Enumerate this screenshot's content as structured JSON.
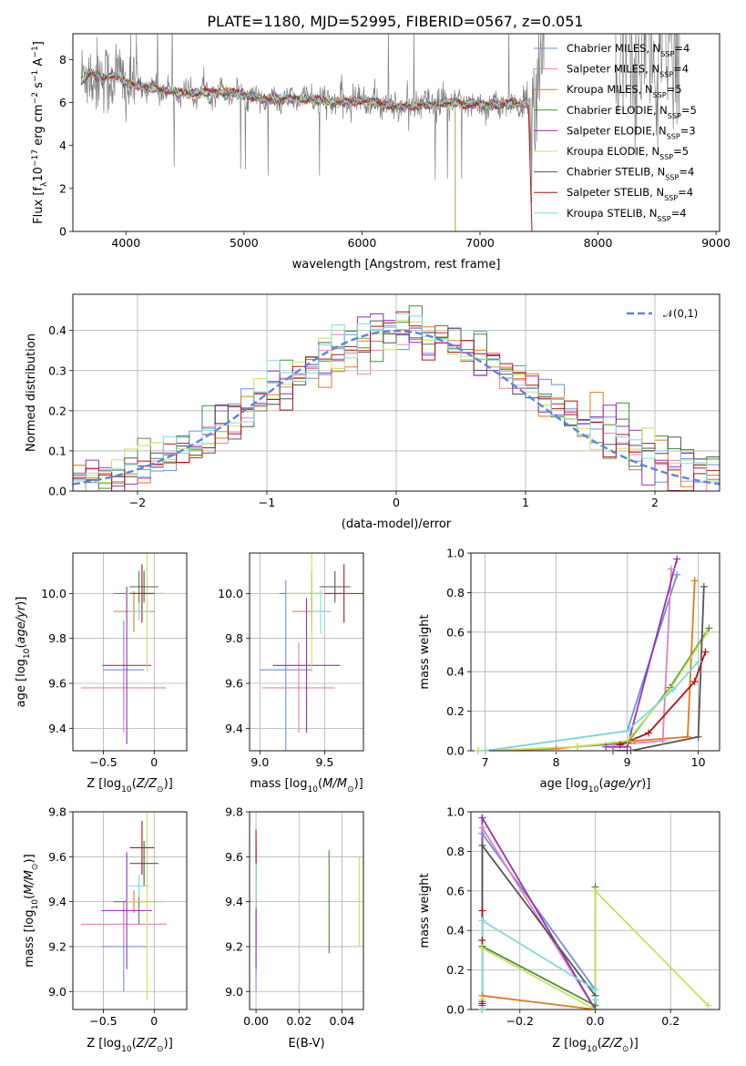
{
  "title": "PLATE=1180, MJD=52995, FIBERID=0567, z=0.051",
  "colors": {
    "Chabrier MILES": "#6f8fdc",
    "Salpeter MILES": "#e27fbf",
    "Kroupa MILES": "#e07a1c",
    "Chabrier ELODIE": "#4c8a3c",
    "Salpeter ELODIE": "#9a2fb3",
    "Kroupa ELODIE": "#c9e05a",
    "Chabrier STELIB": "#555555",
    "Salpeter STELIB": "#b51414",
    "Kroupa STELIB": "#7fdadf",
    "data": "#808080",
    "normal": "#5b86d8"
  },
  "chart_data": [
    {
      "type": "line",
      "panel": "spectrum",
      "xlabel": "wavelength [Angstrom, rest frame]",
      "ylabel": "Flux [f_λ 10^-17 erg cm^-2 s^-1 A^-1]",
      "xlim": [
        3550,
        9030
      ],
      "ylim": [
        0,
        9.2
      ],
      "xticks": [
        4000,
        5000,
        6000,
        7000,
        8000,
        9000
      ],
      "yticks": [
        0,
        2,
        4,
        6,
        8
      ],
      "legend_position": "top-right",
      "legend": [
        {
          "name": "Chabrier MILES",
          "sub": "SSP",
          "n": 4
        },
        {
          "name": "Salpeter MILES",
          "sub": "SSP",
          "n": 4
        },
        {
          "name": "Kroupa MILES",
          "sub": "SSP",
          "n": 5
        },
        {
          "name": "Chabrier ELODIE",
          "sub": "SSP",
          "n": 5
        },
        {
          "name": "Salpeter ELODIE",
          "sub": "SSP",
          "n": 3
        },
        {
          "name": "Kroupa ELODIE",
          "sub": "SSP",
          "n": 5
        },
        {
          "name": "Chabrier STELIB",
          "sub": "SSP",
          "n": 4
        },
        {
          "name": "Salpeter STELIB",
          "sub": "SSP",
          "n": 4
        },
        {
          "name": "Kroupa STELIB",
          "sub": "SSP",
          "n": 4
        }
      ],
      "data_trend": [
        [
          3620,
          7.0
        ],
        [
          3700,
          7.4
        ],
        [
          3800,
          7.1
        ],
        [
          3900,
          7.3
        ],
        [
          4000,
          6.9
        ],
        [
          4200,
          6.7
        ],
        [
          4500,
          6.4
        ],
        [
          4800,
          6.5
        ],
        [
          5000,
          6.4
        ],
        [
          5200,
          6.1
        ],
        [
          5500,
          6.2
        ],
        [
          5800,
          6.0
        ],
        [
          6000,
          6.1
        ],
        [
          6300,
          5.8
        ],
        [
          6600,
          5.9
        ],
        [
          6800,
          6.0
        ],
        [
          7000,
          5.9
        ],
        [
          7200,
          5.9
        ],
        [
          7400,
          6.0
        ]
      ]
    },
    {
      "type": "line",
      "panel": "residual histogram",
      "xlabel": "(data-model)/error",
      "ylabel": "Normed distribution",
      "xlim": [
        -2.5,
        2.5
      ],
      "ylim": [
        0,
        0.49
      ],
      "xticks": [
        -2,
        -1,
        0,
        1,
        2
      ],
      "yticks": [
        0.0,
        0.1,
        0.2,
        0.3,
        0.4
      ],
      "legend_position": "top-right",
      "legend": [
        {
          "label": "𝒩(0,1)"
        }
      ],
      "bin_width": 0.1,
      "histogram_envelope": [
        [
          -2.5,
          0.03
        ],
        [
          -2.3,
          0.04
        ],
        [
          -2.1,
          0.045
        ],
        [
          -1.9,
          0.065
        ],
        [
          -1.7,
          0.1
        ],
        [
          -1.5,
          0.13
        ],
        [
          -1.3,
          0.17
        ],
        [
          -1.1,
          0.21
        ],
        [
          -0.9,
          0.26
        ],
        [
          -0.7,
          0.3
        ],
        [
          -0.5,
          0.33
        ],
        [
          -0.3,
          0.36
        ],
        [
          -0.1,
          0.39
        ],
        [
          0.1,
          0.4
        ],
        [
          0.3,
          0.39
        ],
        [
          0.5,
          0.36
        ],
        [
          0.7,
          0.33
        ],
        [
          0.9,
          0.29
        ],
        [
          1.1,
          0.25
        ],
        [
          1.3,
          0.21
        ],
        [
          1.5,
          0.17
        ],
        [
          1.7,
          0.14
        ],
        [
          1.9,
          0.1
        ],
        [
          2.1,
          0.075
        ],
        [
          2.3,
          0.05
        ],
        [
          2.5,
          0.03
        ]
      ]
    },
    {
      "type": "scatter",
      "panel": "Z vs age",
      "xlabel": "Z [log10(Z/Z⊙)]",
      "ylabel": "age  [log10(age/yr)]",
      "xlim": [
        -0.8,
        0.32
      ],
      "ylim": [
        9.3,
        10.18
      ],
      "xticks": [
        -0.5,
        0.0
      ],
      "yticks": [
        9.4,
        9.6,
        9.8,
        10.0
      ],
      "points": [
        {
          "model": "Chabrier MILES",
          "x": -0.3,
          "xerr": 0.2,
          "y": 9.66,
          "yerr": 0.22
        },
        {
          "model": "Salpeter MILES",
          "x": -0.3,
          "xerr": 0.42,
          "y": 9.58,
          "yerr": 0.2
        },
        {
          "model": "Kroupa MILES",
          "x": -0.2,
          "xerr": 0.2,
          "y": 9.92,
          "yerr": 0.09
        },
        {
          "model": "Chabrier ELODIE",
          "x": -0.15,
          "xerr": 0.25,
          "y": 10.0,
          "yerr": 0.1
        },
        {
          "model": "Salpeter ELODIE",
          "x": -0.27,
          "xerr": 0.24,
          "y": 9.68,
          "yerr": 0.35
        },
        {
          "model": "Kroupa ELODIE",
          "x": -0.07,
          "xerr": 0.2,
          "y": 10.0,
          "yerr": 0.35
        },
        {
          "model": "Chabrier STELIB",
          "x": -0.1,
          "xerr": 0.14,
          "y": 10.03,
          "yerr": 0.07
        },
        {
          "model": "Salpeter STELIB",
          "x": -0.12,
          "xerr": 0.12,
          "y": 10.0,
          "yerr": 0.13
        },
        {
          "model": "Kroupa STELIB",
          "x": -0.15,
          "xerr": 0.1,
          "y": 9.92,
          "yerr": 0.04
        }
      ]
    },
    {
      "type": "scatter",
      "panel": "mass vs age",
      "xlabel": "mass [log10(M/M⊙)]",
      "ylabel": "",
      "xlim": [
        8.92,
        9.8
      ],
      "ylim": [
        9.3,
        10.18
      ],
      "xticks": [
        9.0,
        9.5
      ],
      "yticks": [
        9.4,
        9.6,
        9.8,
        10.0
      ],
      "points": [
        {
          "model": "Chabrier MILES",
          "x": 9.2,
          "xerr": 0.2,
          "y": 9.66,
          "yerr": 0.4
        },
        {
          "model": "Salpeter MILES",
          "x": 9.3,
          "xerr": 0.28,
          "y": 9.58,
          "yerr": 0.2
        },
        {
          "model": "Kroupa MILES",
          "x": 9.4,
          "xerr": 0.15,
          "y": 9.92,
          "yerr": 0.09
        },
        {
          "model": "Chabrier ELODIE",
          "x": 9.4,
          "xerr": 0.25,
          "y": 10.0,
          "yerr": 0.1
        },
        {
          "model": "Salpeter ELODIE",
          "x": 9.36,
          "xerr": 0.26,
          "y": 9.68,
          "yerr": 0.3
        },
        {
          "model": "Kroupa ELODIE",
          "x": 9.4,
          "xerr": 0.2,
          "y": 10.0,
          "yerr": 0.35
        },
        {
          "model": "Chabrier STELIB",
          "x": 9.58,
          "xerr": 0.12,
          "y": 10.03,
          "yerr": 0.07
        },
        {
          "model": "Salpeter STELIB",
          "x": 9.65,
          "xerr": 0.15,
          "y": 10.0,
          "yerr": 0.13
        },
        {
          "model": "Kroupa STELIB",
          "x": 9.47,
          "xerr": 0.08,
          "y": 9.92,
          "yerr": 0.1
        }
      ]
    },
    {
      "type": "line",
      "panel": "age vs mass weight",
      "xlabel": "age  [log10(age/yr)]",
      "ylabel": "mass weight",
      "xlim": [
        6.8,
        10.3
      ],
      "ylim": [
        0,
        1.0
      ],
      "xticks": [
        7,
        8,
        9,
        10
      ],
      "yticks": [
        0.0,
        0.2,
        0.4,
        0.6,
        0.8,
        1.0
      ],
      "series": [
        {
          "model": "Chabrier MILES",
          "x": [
            7.0,
            9.0,
            9.7
          ],
          "y": [
            0.0,
            0.1,
            0.89
          ]
        },
        {
          "model": "Salpeter MILES",
          "x": [
            8.8,
            9.5,
            9.62
          ],
          "y": [
            0.03,
            0.05,
            0.92
          ]
        },
        {
          "model": "Kroupa MILES",
          "x": [
            6.9,
            8.0,
            9.1,
            9.85,
            9.95
          ],
          "y": [
            0.0,
            0.01,
            0.05,
            0.07,
            0.86
          ]
        },
        {
          "model": "Chabrier ELODIE",
          "x": [
            8.3,
            9.0,
            9.6,
            10.15
          ],
          "y": [
            0.02,
            0.04,
            0.32,
            0.62
          ]
        },
        {
          "model": "Salpeter ELODIE",
          "x": [
            8.7,
            9.0,
            9.7
          ],
          "y": [
            0.02,
            0.02,
            0.97
          ]
        },
        {
          "model": "Kroupa ELODIE",
          "x": [
            6.9,
            8.3,
            9.0,
            9.6,
            10.13
          ],
          "y": [
            0.0,
            0.02,
            0.05,
            0.31,
            0.6
          ]
        },
        {
          "model": "Chabrier STELIB",
          "x": [
            8.8,
            9.05,
            10.0,
            10.08
          ],
          "y": [
            0.0,
            0.0,
            0.07,
            0.83
          ]
        },
        {
          "model": "Salpeter STELIB",
          "x": [
            8.9,
            9.3,
            9.95,
            10.1
          ],
          "y": [
            0.03,
            0.09,
            0.35,
            0.5
          ]
        },
        {
          "model": "Kroupa STELIB",
          "x": [
            7.0,
            9.0,
            9.65,
            10.0
          ],
          "y": [
            0.0,
            0.1,
            0.31,
            0.45
          ]
        }
      ]
    },
    {
      "type": "scatter",
      "panel": "Z vs mass",
      "xlabel": "Z [log10(Z/Z⊙)]",
      "ylabel": "mass [log10(M/M⊙)]",
      "xlim": [
        -0.8,
        0.32
      ],
      "ylim": [
        8.92,
        9.8
      ],
      "xticks": [
        -0.5,
        0.0
      ],
      "yticks": [
        9.0,
        9.2,
        9.4,
        9.6,
        9.8
      ],
      "points": [
        {
          "model": "Chabrier MILES",
          "x": -0.3,
          "xerr": 0.22,
          "y": 9.2,
          "yerr": 0.2
        },
        {
          "model": "Salpeter MILES",
          "x": -0.3,
          "xerr": 0.42,
          "y": 9.3,
          "yerr": 0.1
        },
        {
          "model": "Kroupa MILES",
          "x": -0.2,
          "xerr": 0.2,
          "y": 9.4,
          "yerr": 0.05
        },
        {
          "model": "Chabrier ELODIE",
          "x": -0.15,
          "xerr": 0.25,
          "y": 9.4,
          "yerr": 0.1
        },
        {
          "model": "Salpeter ELODIE",
          "x": -0.27,
          "xerr": 0.25,
          "y": 9.36,
          "yerr": 0.26
        },
        {
          "model": "Kroupa ELODIE",
          "x": -0.07,
          "xerr": 0.2,
          "y": 9.4,
          "yerr": 0.44
        },
        {
          "model": "Chabrier STELIB",
          "x": -0.1,
          "xerr": 0.14,
          "y": 9.57,
          "yerr": 0.1
        },
        {
          "model": "Salpeter STELIB",
          "x": -0.12,
          "xerr": 0.12,
          "y": 9.64,
          "yerr": 0.12
        },
        {
          "model": "Kroupa STELIB",
          "x": -0.15,
          "xerr": 0.1,
          "y": 9.47,
          "yerr": 0.05
        }
      ]
    },
    {
      "type": "scatter",
      "panel": "E(B-V) vs mass",
      "xlabel": "E(B-V)",
      "ylabel": "",
      "xlim": [
        -0.003,
        0.05
      ],
      "ylim": [
        8.92,
        9.8
      ],
      "xticks": [
        0.0,
        0.02,
        0.04
      ],
      "yticks": [
        9.0,
        9.2,
        9.4,
        9.6,
        9.8
      ],
      "points": [
        {
          "model": "Chabrier MILES",
          "x": 0.0,
          "y": 9.2,
          "yerr": 0.2
        },
        {
          "model": "Salpeter MILES",
          "x": 0.0,
          "y": 9.3,
          "yerr": 0.1
        },
        {
          "model": "Kroupa MILES",
          "x": 0.0,
          "y": 9.4,
          "yerr": 0.05
        },
        {
          "model": "Chabrier ELODIE",
          "x": 0.034,
          "y": 9.4,
          "yerr": 0.23
        },
        {
          "model": "Salpeter ELODIE",
          "x": 0.0,
          "y": 9.36,
          "yerr": 0.26
        },
        {
          "model": "Kroupa ELODIE",
          "x": 0.048,
          "y": 9.4,
          "yerr": 0.2
        },
        {
          "model": "Chabrier STELIB",
          "x": 0.0,
          "y": 9.57,
          "yerr": 0.1
        },
        {
          "model": "Salpeter STELIB",
          "x": 0.0,
          "y": 9.64,
          "yerr": 0.08
        },
        {
          "model": "Kroupa STELIB",
          "x": 0.0,
          "y": 9.47,
          "yerr": 0.1
        }
      ]
    },
    {
      "type": "line",
      "panel": "Z vs mass weight",
      "xlabel": "Z [log10(Z/Z⊙)]",
      "ylabel": "mass weight",
      "xlim": [
        -0.33,
        0.33
      ],
      "ylim": [
        0,
        1.0
      ],
      "xticks": [
        -0.2,
        0.0,
        0.2
      ],
      "yticks": [
        0.0,
        0.2,
        0.4,
        0.6,
        0.8,
        1.0
      ],
      "series": [
        {
          "model": "Chabrier MILES",
          "x": [
            -0.3,
            -0.3,
            0.0
          ],
          "y": [
            0.0,
            0.89,
            0.1
          ]
        },
        {
          "model": "Salpeter MILES",
          "x": [
            -0.3,
            -0.3,
            0.0
          ],
          "y": [
            0.03,
            0.92,
            0.0
          ]
        },
        {
          "model": "Kroupa MILES",
          "x": [
            -0.3,
            -0.3,
            0.0
          ],
          "y": [
            0.0,
            0.07,
            0.0
          ]
        },
        {
          "model": "Chabrier ELODIE",
          "x": [
            -0.3,
            -0.3,
            0.0,
            0.0
          ],
          "y": [
            0.04,
            0.32,
            0.02,
            0.62
          ]
        },
        {
          "model": "Salpeter ELODIE",
          "x": [
            -0.3,
            -0.3,
            0.0
          ],
          "y": [
            0.02,
            0.97,
            0.0
          ]
        },
        {
          "model": "Kroupa ELODIE",
          "x": [
            -0.3,
            -0.3,
            0.0,
            0.0,
            0.3
          ],
          "y": [
            0.05,
            0.31,
            0.0,
            0.6,
            0.02
          ]
        },
        {
          "model": "Chabrier STELIB",
          "x": [
            -0.3,
            -0.3,
            0.0,
            0.0
          ],
          "y": [
            0.0,
            0.83,
            0.07,
            0.0
          ]
        },
        {
          "model": "Salpeter STELIB",
          "x": [
            -0.3,
            -0.3,
            -0.3
          ],
          "y": [
            0.03,
            0.35,
            0.5
          ]
        },
        {
          "model": "Kroupa STELIB",
          "x": [
            -0.3,
            -0.3,
            0.0,
            0.0
          ],
          "y": [
            0.0,
            0.45,
            0.1,
            0.05
          ]
        }
      ]
    }
  ]
}
